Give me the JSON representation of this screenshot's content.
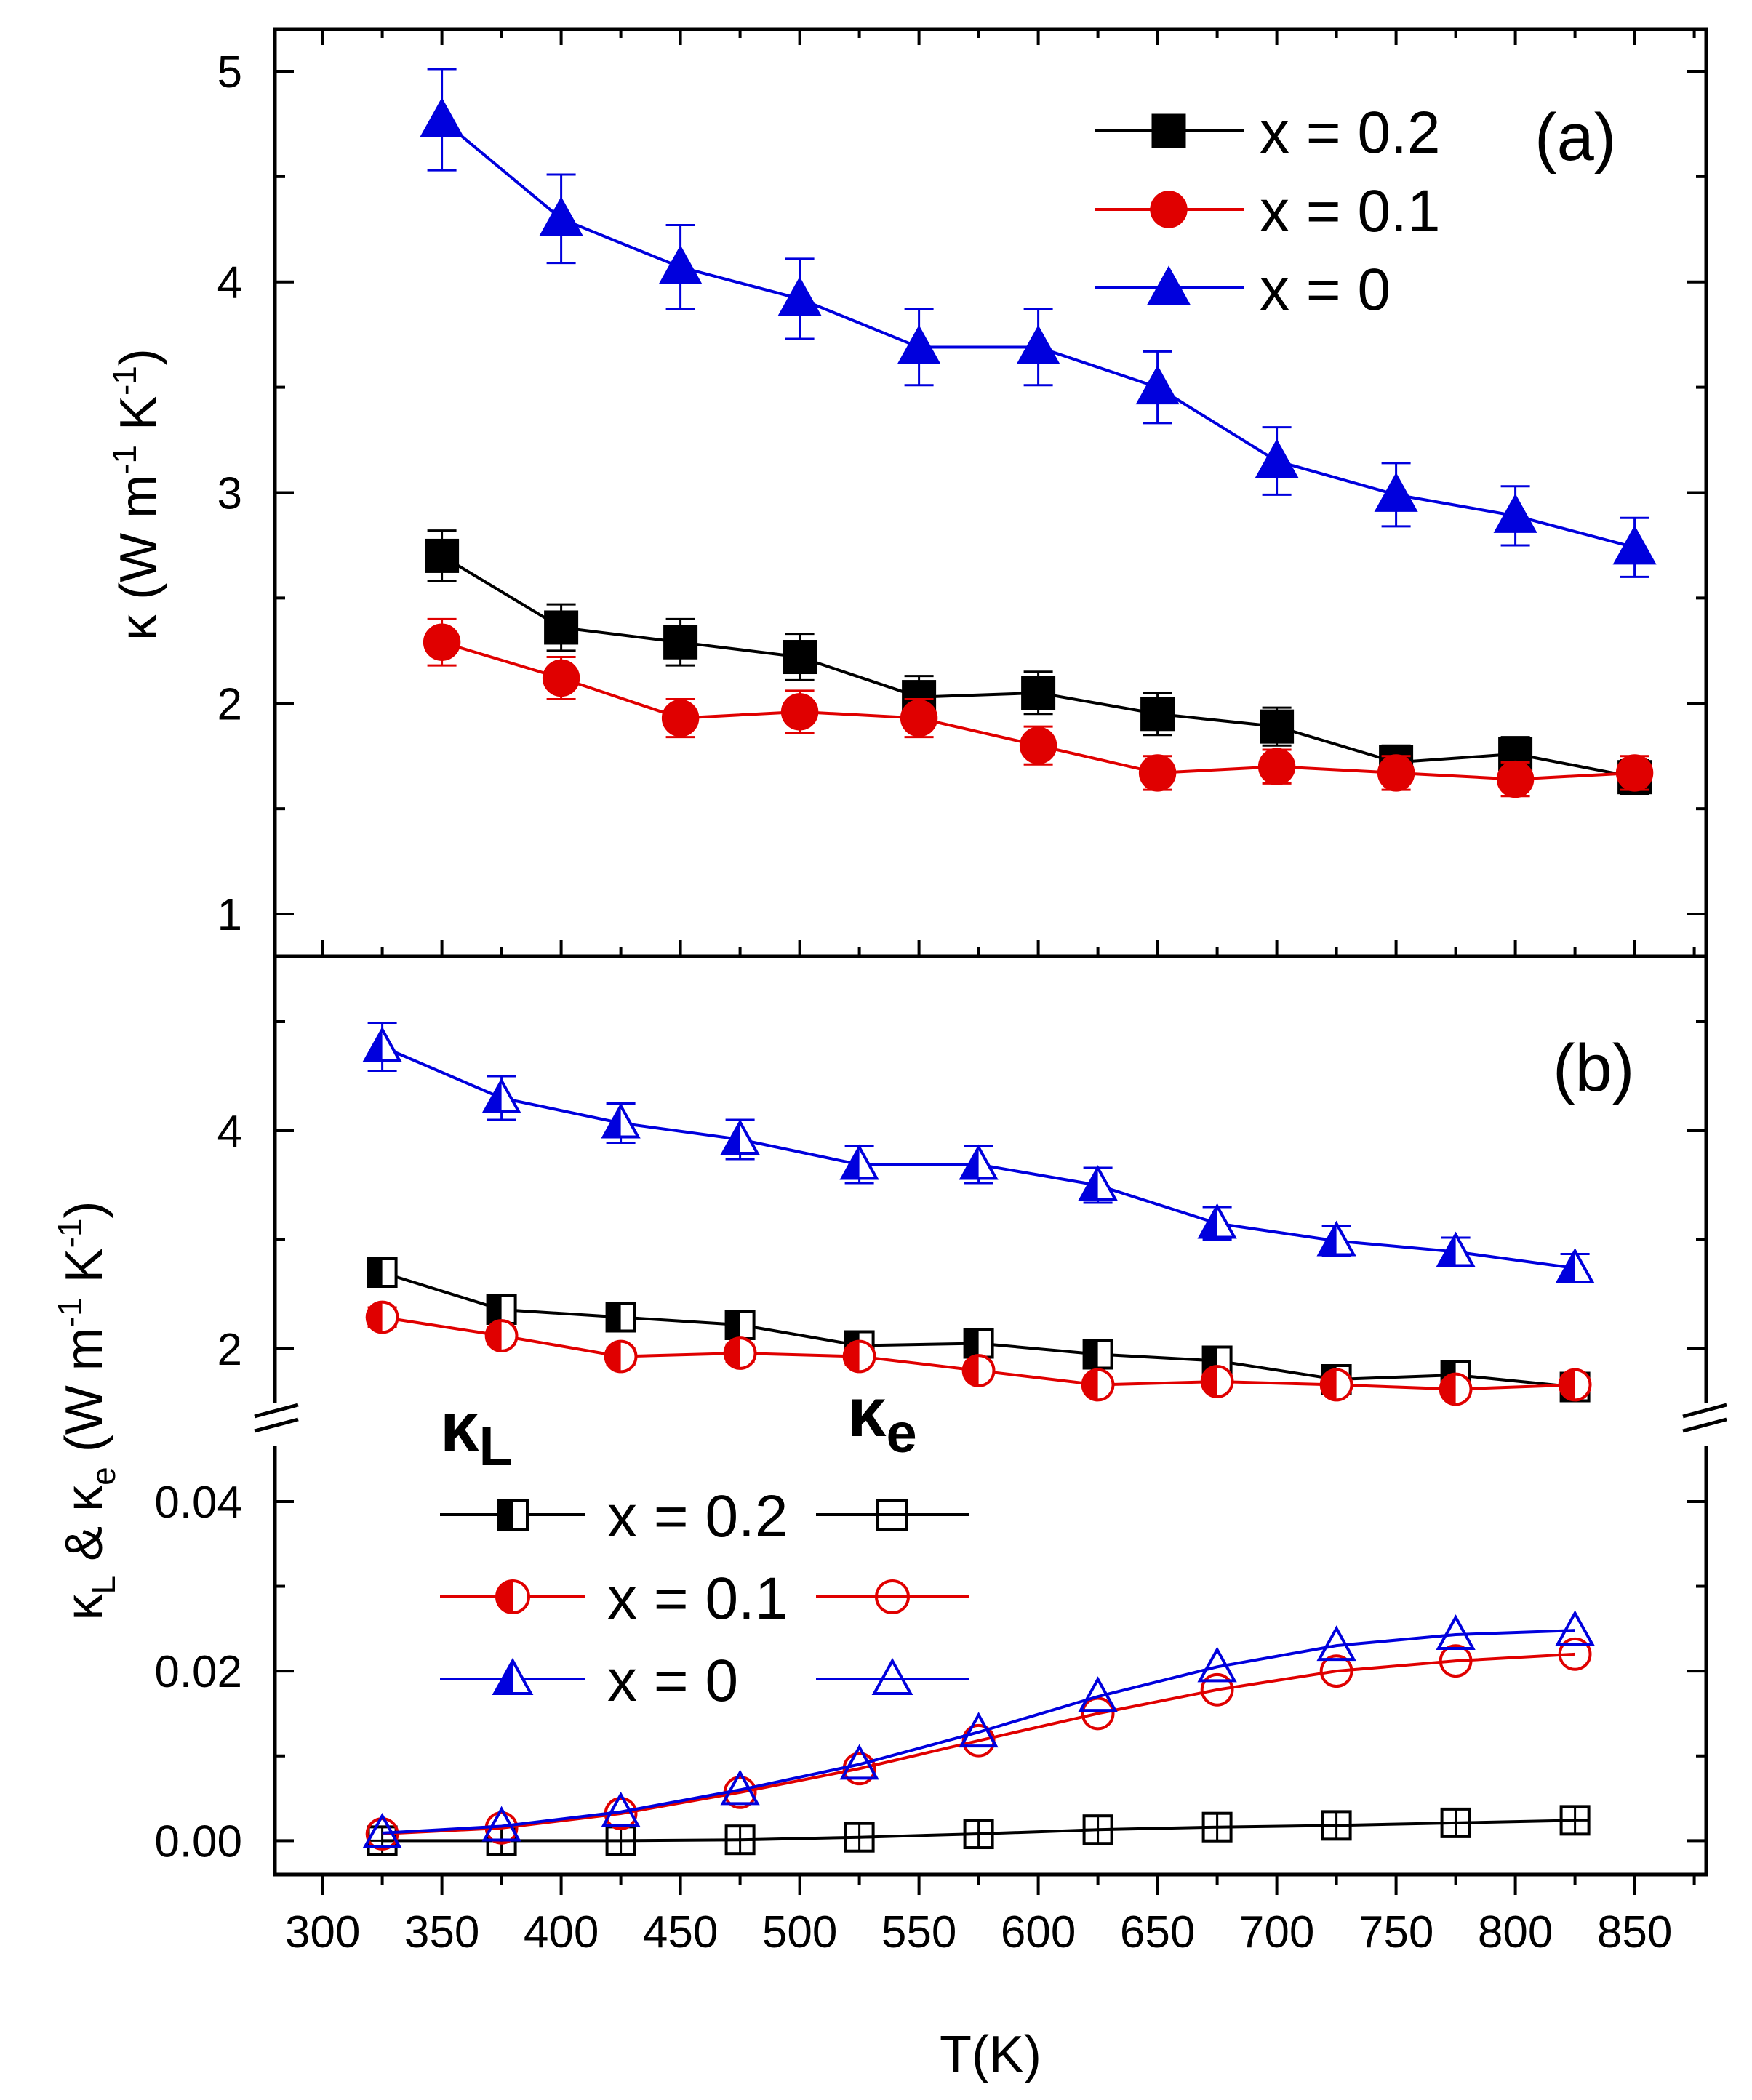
{
  "chart_data": [
    {
      "panel": "(a)",
      "type": "line",
      "ylabel_base": "κ (W m",
      "ylabel_sup1": "-1",
      "ylabel_mid": " K",
      "ylabel_sup2": "-1",
      "ylabel_end": ")",
      "ylim": [
        0.8,
        5.2
      ],
      "yticks": [
        "1",
        "2",
        "3",
        "4",
        "5"
      ],
      "ytick_values": [
        1,
        2,
        3,
        4,
        5
      ],
      "series": [
        {
          "name": "x = 0.2",
          "color": "#000000",
          "marker": "square-filled",
          "x": [
            350,
            400,
            450,
            500,
            550,
            600,
            650,
            700,
            750,
            800,
            850
          ],
          "y": [
            2.7,
            2.36,
            2.29,
            2.22,
            2.03,
            2.05,
            1.95,
            1.89,
            1.72,
            1.76,
            1.65
          ],
          "err": [
            0.12,
            0.11,
            0.11,
            0.11,
            0.1,
            0.1,
            0.1,
            0.09,
            0.08,
            0.08,
            0.08
          ]
        },
        {
          "name": "x = 0.1",
          "color": "#e00000",
          "marker": "circle-filled",
          "x": [
            350,
            400,
            450,
            500,
            550,
            600,
            650,
            700,
            750,
            800,
            850
          ],
          "y": [
            2.29,
            2.12,
            1.93,
            1.96,
            1.93,
            1.8,
            1.67,
            1.7,
            1.67,
            1.64,
            1.67
          ],
          "err": [
            0.11,
            0.1,
            0.09,
            0.1,
            0.09,
            0.09,
            0.08,
            0.08,
            0.08,
            0.08,
            0.08
          ]
        },
        {
          "name": "x = 0",
          "color": "#0000dd",
          "marker": "triangle-filled",
          "x": [
            350,
            400,
            450,
            500,
            550,
            600,
            650,
            700,
            750,
            800,
            850
          ],
          "y": [
            4.77,
            4.3,
            4.07,
            3.92,
            3.69,
            3.69,
            3.5,
            3.15,
            2.99,
            2.89,
            2.74
          ],
          "err": [
            0.24,
            0.21,
            0.2,
            0.19,
            0.18,
            0.18,
            0.17,
            0.16,
            0.15,
            0.14,
            0.14
          ]
        }
      ]
    },
    {
      "panel": "(b)",
      "type": "line",
      "broken_axis": true,
      "ylabel_kappa": "κ",
      "ylabel_sub1": "L",
      "ylabel_amp": " & κ",
      "ylabel_sub2": "e",
      "ylabel_rest": " (W m",
      "ylabel_sup1": "-1",
      "ylabel_mid": " K",
      "ylabel_sup2": "-1",
      "ylabel_end": ")",
      "upper_ylim": [
        1.3,
        5.6
      ],
      "upper_yticks": [
        "2",
        "4"
      ],
      "upper_ytick_values": [
        2,
        4
      ],
      "lower_ylim": [
        -0.004,
        0.049
      ],
      "lower_yticks": [
        "0.00",
        "0.02",
        "0.04"
      ],
      "lower_ytick_values": [
        0.0,
        0.02,
        0.04
      ],
      "kappaL_series": [
        {
          "name": "x = 0.2",
          "color": "#000000",
          "marker": "square-half",
          "x": [
            325,
            375,
            425,
            475,
            525,
            575,
            625,
            675,
            725,
            775,
            825
          ],
          "y": [
            2.7,
            2.36,
            2.29,
            2.22,
            2.03,
            2.05,
            1.95,
            1.89,
            1.72,
            1.76,
            1.65
          ],
          "err": [
            0.1,
            0.09,
            0.09,
            0.09,
            0.08,
            0.08,
            0.08,
            0.08,
            0.07,
            0.07,
            0.07
          ]
        },
        {
          "name": "x = 0.1",
          "color": "#e00000",
          "marker": "circle-half",
          "x": [
            325,
            375,
            425,
            475,
            525,
            575,
            625,
            675,
            725,
            775,
            825
          ],
          "y": [
            2.29,
            2.12,
            1.93,
            1.96,
            1.93,
            1.8,
            1.67,
            1.7,
            1.67,
            1.63,
            1.67
          ],
          "err": [
            0.09,
            0.08,
            0.08,
            0.08,
            0.08,
            0.07,
            0.07,
            0.07,
            0.07,
            0.07,
            0.07
          ]
        },
        {
          "name": "x = 0",
          "color": "#0000dd",
          "marker": "triangle-half",
          "x": [
            325,
            375,
            425,
            475,
            525,
            575,
            625,
            675,
            725,
            775,
            825
          ],
          "y": [
            4.77,
            4.3,
            4.07,
            3.92,
            3.69,
            3.69,
            3.5,
            3.15,
            2.99,
            2.89,
            2.74
          ],
          "err": [
            0.22,
            0.2,
            0.18,
            0.18,
            0.17,
            0.17,
            0.16,
            0.15,
            0.14,
            0.13,
            0.13
          ]
        }
      ],
      "kappaE_series": [
        {
          "name": "x = 0.2",
          "color": "#000000",
          "marker": "square-open",
          "x": [
            325,
            375,
            425,
            475,
            525,
            575,
            625,
            675,
            725,
            775,
            825
          ],
          "y": [
            0.0,
            0.0,
            0.0,
            0.0001,
            0.0004,
            0.0008,
            0.0013,
            0.0016,
            0.0018,
            0.0021,
            0.0024
          ]
        },
        {
          "name": "x = 0.1",
          "color": "#e00000",
          "marker": "circle-open",
          "x": [
            325,
            375,
            425,
            475,
            525,
            575,
            625,
            675,
            725,
            775,
            825
          ],
          "y": [
            0.0008,
            0.0015,
            0.0032,
            0.0057,
            0.0085,
            0.0118,
            0.015,
            0.0178,
            0.02,
            0.0212,
            0.022
          ]
        },
        {
          "name": "x = 0",
          "color": "#0000dd",
          "marker": "triangle-open",
          "x": [
            325,
            375,
            425,
            475,
            525,
            575,
            625,
            675,
            725,
            775,
            825
          ],
          "y": [
            0.0009,
            0.0017,
            0.0034,
            0.006,
            0.009,
            0.0128,
            0.017,
            0.0205,
            0.023,
            0.0243,
            0.0248
          ]
        }
      ],
      "kappaL_header": "κ",
      "kappaL_header_sub": "L",
      "kappaE_header": "κ",
      "kappaE_header_sub": "e"
    }
  ],
  "xaxis": {
    "label": "T(K)",
    "xlim": [
      280,
      880
    ],
    "ticks": [
      "300",
      "350",
      "400",
      "450",
      "500",
      "550",
      "600",
      "650",
      "700",
      "750",
      "800",
      "850"
    ],
    "tick_values": [
      300,
      350,
      400,
      450,
      500,
      550,
      600,
      650,
      700,
      750,
      800,
      850
    ]
  },
  "legend_a": [
    {
      "label": "x = 0.2",
      "color": "#000000",
      "marker": "square-filled"
    },
    {
      "label": "x = 0.1",
      "color": "#e00000",
      "marker": "circle-filled"
    },
    {
      "label": "x = 0",
      "color": "#0000dd",
      "marker": "triangle-filled"
    }
  ],
  "legend_b": [
    {
      "label": "x = 0.2",
      "color": "#000000",
      "markerL": "square-half",
      "markerE": "square-open"
    },
    {
      "label": "x = 0.1",
      "color": "#e00000",
      "markerL": "circle-half",
      "markerE": "circle-open"
    },
    {
      "label": "x = 0",
      "color": "#0000dd",
      "markerL": "triangle-half",
      "markerE": "triangle-open"
    }
  ]
}
